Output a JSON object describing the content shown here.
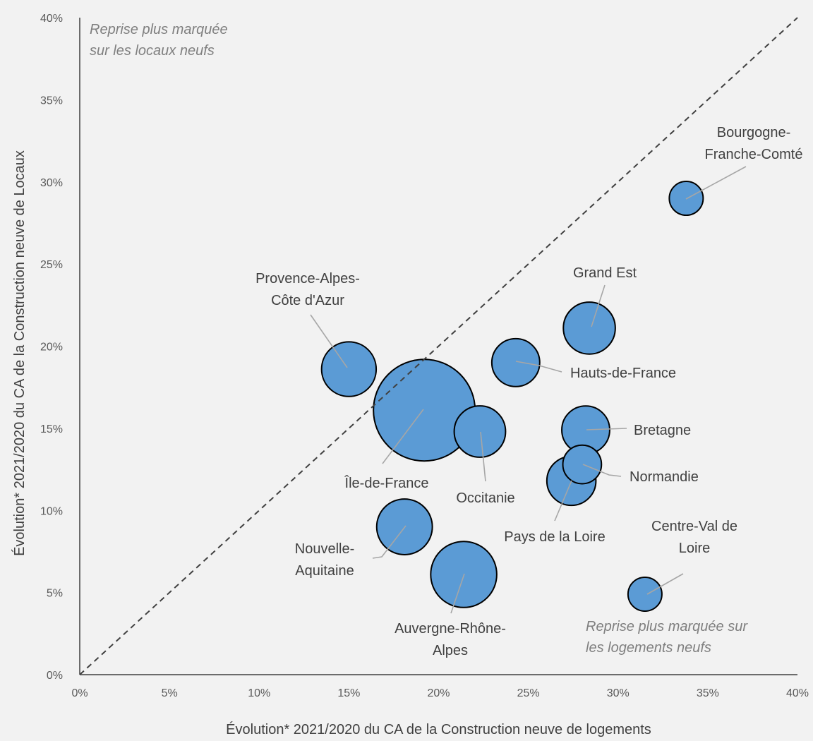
{
  "chart_data": {
    "type": "scatter",
    "subtype": "bubble",
    "title": "",
    "xlabel": "Évolution*  2021/2020  du CA de la Construction  neuve de logements",
    "ylabel": "Évolution*  2021/2020  du CA de la Construction  neuve de Locaux",
    "xlim": [
      0,
      0.4
    ],
    "ylim": [
      0,
      0.4
    ],
    "xticks": [
      "0%",
      "5%",
      "10%",
      "15%",
      "20%",
      "25%",
      "30%",
      "35%",
      "40%"
    ],
    "yticks": [
      "0%",
      "5%",
      "10%",
      "15%",
      "20%",
      "25%",
      "30%",
      "35%",
      "40%"
    ],
    "grid": false,
    "diagonal": "dashed y = x",
    "bubble_color": "#5b9bd5",
    "annotations": {
      "top_left": [
        "Reprise plus  marquée",
        "sur les locaux  neufs"
      ],
      "bottom_right": [
        "Reprise plus marquée sur",
        "les logements  neufs"
      ]
    },
    "points": [
      {
        "label": [
          "Bourgogne-",
          "Franche-Comté"
        ],
        "x": 0.338,
        "y": 0.29,
        "size": 1.0
      },
      {
        "label": [
          "Grand Est"
        ],
        "x": 0.284,
        "y": 0.211,
        "size": 2.35
      },
      {
        "label": [
          "Hauts-de-France"
        ],
        "x": 0.243,
        "y": 0.19,
        "size": 2.0
      },
      {
        "label": [
          "Provence-Alpes-",
          "Côte d'Azur"
        ],
        "x": 0.15,
        "y": 0.186,
        "size": 2.6
      },
      {
        "label": [
          "Île-de-France"
        ],
        "x": 0.192,
        "y": 0.161,
        "size": 9.0
      },
      {
        "label": [
          "Occitanie"
        ],
        "x": 0.223,
        "y": 0.148,
        "size": 2.3
      },
      {
        "label": [
          "Bretagne"
        ],
        "x": 0.282,
        "y": 0.149,
        "size": 2.0
      },
      {
        "label": [
          "Normandie"
        ],
        "x": 0.28,
        "y": 0.128,
        "size": 1.3
      },
      {
        "label": [
          "Pays de la Loire"
        ],
        "x": 0.274,
        "y": 0.118,
        "size": 2.1
      },
      {
        "label": [
          "Nouvelle-",
          "Aquitaine"
        ],
        "x": 0.181,
        "y": 0.09,
        "size": 2.7
      },
      {
        "label": [
          "Auvergne-Rhône-",
          "Alpes"
        ],
        "x": 0.214,
        "y": 0.061,
        "size": 3.8
      },
      {
        "label": [
          "Centre-Val de",
          "Loire"
        ],
        "x": 0.315,
        "y": 0.049,
        "size": 1.0
      }
    ]
  }
}
